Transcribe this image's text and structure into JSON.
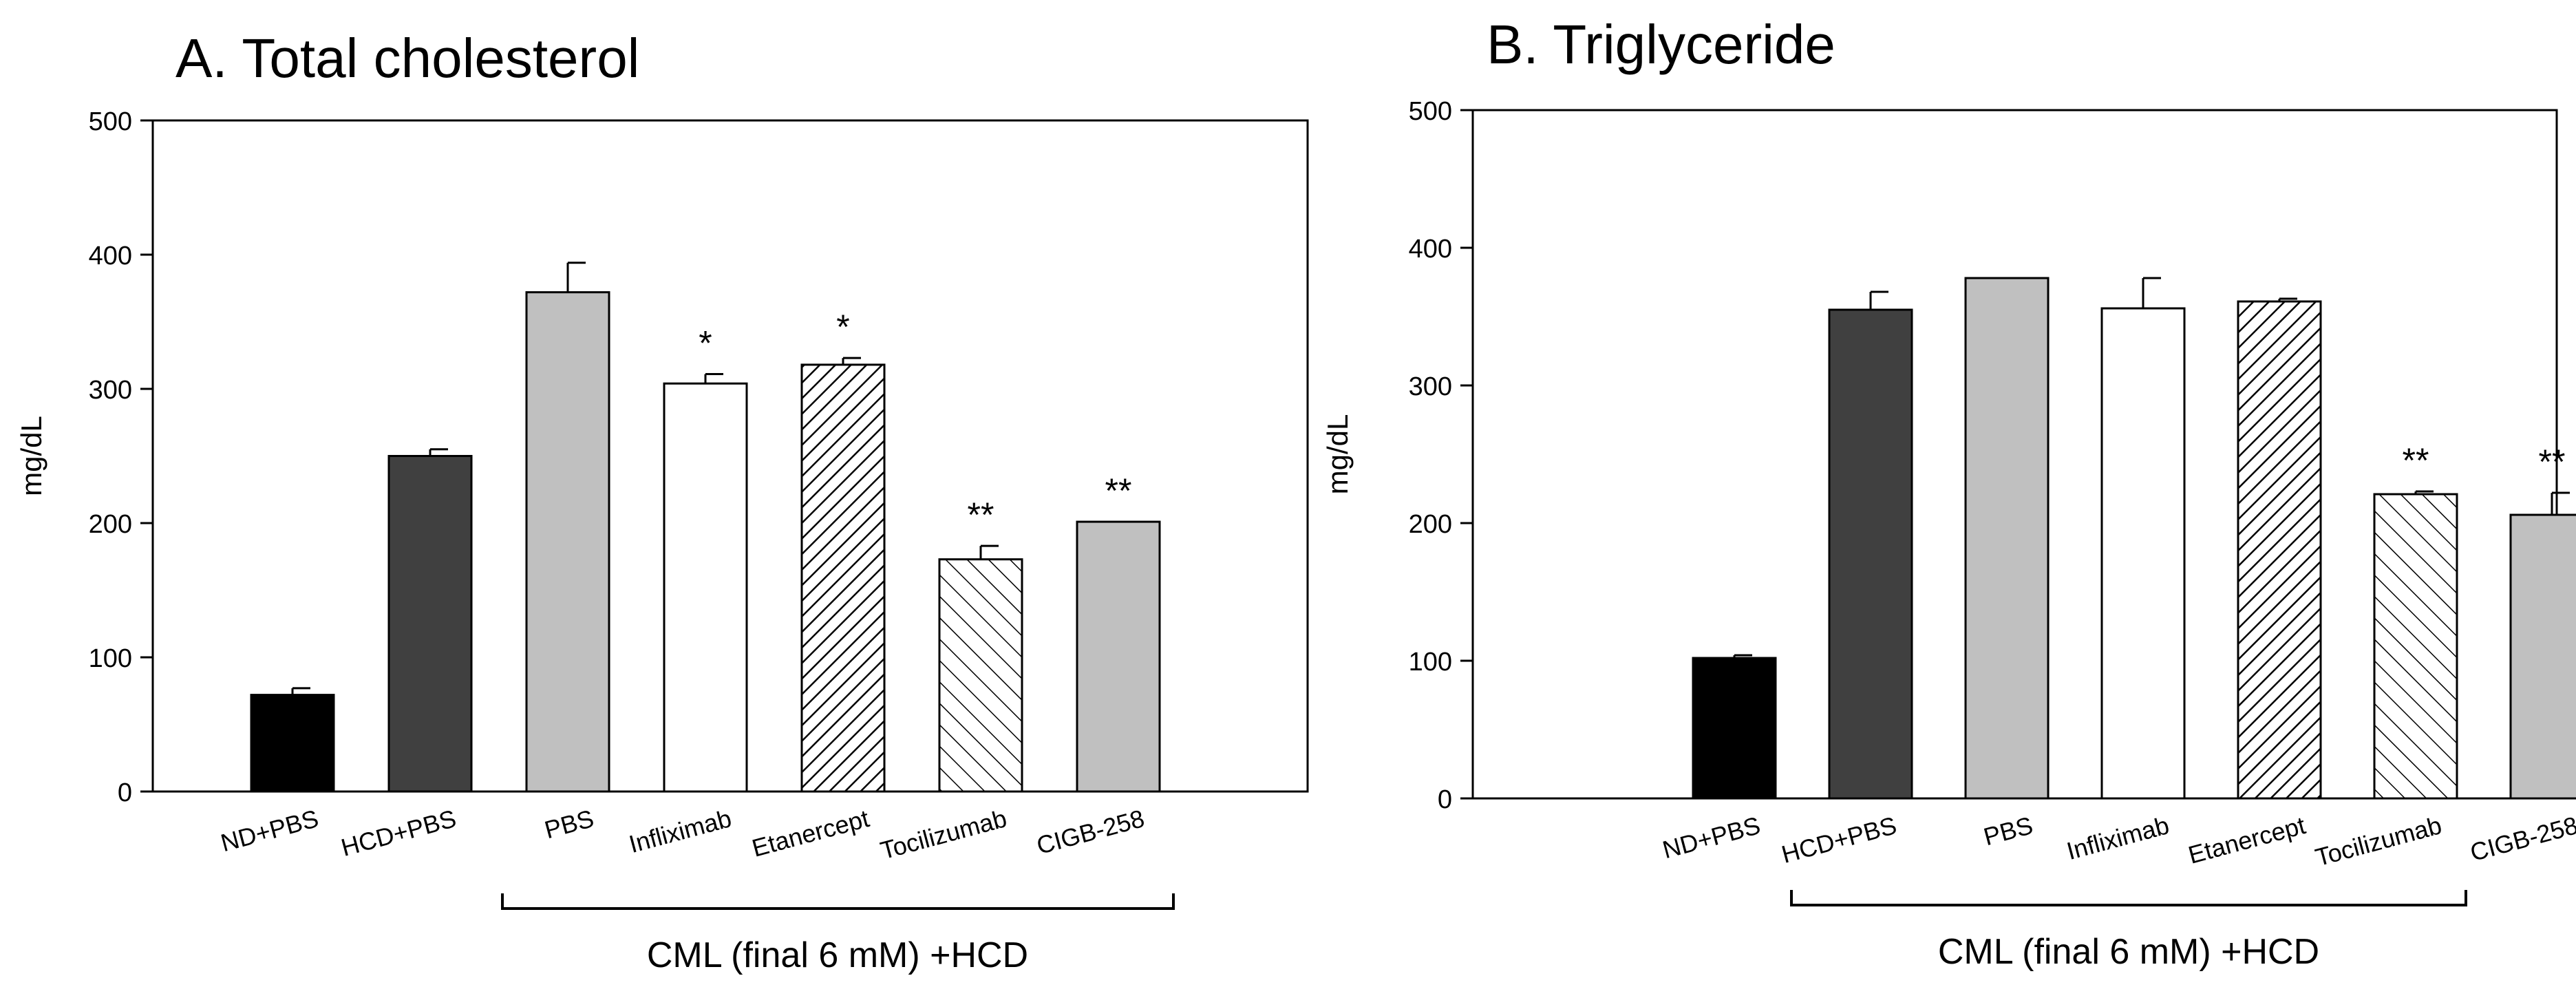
{
  "chart_data": [
    {
      "type": "bar",
      "title": "A. Total cholesterol",
      "ylabel": "mg/dL",
      "ylim": [
        0,
        500
      ],
      "yticks": [
        "0",
        "100",
        "200",
        "300",
        "400",
        "500"
      ],
      "categories": [
        "ND+PBS",
        "HCD+PBS",
        "PBS",
        "Infliximab",
        "Etanercept",
        "Tocilizumab",
        "CIGB-258"
      ],
      "values": [
        72,
        250,
        372,
        304,
        318,
        173,
        201
      ],
      "errors": [
        5,
        5,
        22,
        7,
        5,
        10,
        0
      ],
      "significance": [
        "",
        "",
        "",
        "*",
        "*",
        "**",
        "**"
      ],
      "fills": [
        "#000000",
        "#404040",
        "#c0c0c0",
        "#ffffff",
        "hatch-dense",
        "hatch-sparse",
        "#c0c0c0"
      ],
      "group_label": "CML (final 6 mM) +HCD"
    },
    {
      "type": "bar",
      "title": "B. Triglyceride",
      "ylabel": "mg/dL",
      "ylim": [
        0,
        500
      ],
      "yticks": [
        "0",
        "100",
        "200",
        "300",
        "400",
        "500"
      ],
      "categories": [
        "ND+PBS",
        "HCD+PBS",
        "PBS",
        "Infliximab",
        "Etanercept",
        "Tocilizumab",
        "CIGB-258"
      ],
      "values": [
        102,
        355,
        378,
        356,
        361,
        221,
        206
      ],
      "errors": [
        2,
        13,
        0,
        22,
        2,
        2,
        16
      ],
      "significance": [
        "",
        "",
        "",
        "",
        "",
        "**",
        "**"
      ],
      "fills": [
        "#000000",
        "#404040",
        "#c0c0c0",
        "#ffffff",
        "hatch-dense",
        "hatch-sparse",
        "#c0c0c0"
      ],
      "group_label": "CML (final 6 mM) +HCD"
    }
  ]
}
